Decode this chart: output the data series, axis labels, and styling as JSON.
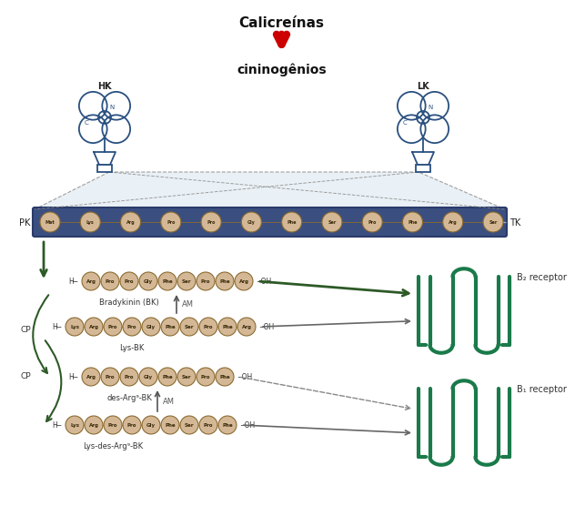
{
  "title": "Calicreínas",
  "subtitle": "cininogênios",
  "bg_color": "#ffffff",
  "receptor_color": "#1a7a4a",
  "red_arrow_color": "#cc0000",
  "dark_arrow_color": "#2d5a27",
  "node_fill": "#d4b896",
  "node_edge": "#8b6b30",
  "node_text_color": "#3a2a0a",
  "bar_fill": "#3a4f80",
  "bar_edge": "#2a3a6a",
  "protein_bar_text": [
    "Met",
    "Lys",
    "Arg",
    "Pro",
    "Pro",
    "Gly",
    "Phe",
    "Ser",
    "Pro",
    "Phe",
    "Arg",
    "Ser"
  ],
  "bk_nodes": [
    "Arg",
    "Pro",
    "Pro",
    "Gly",
    "Phe",
    "Ser",
    "Pro",
    "Phe",
    "Arg"
  ],
  "lysbk_nodes": [
    "Lys",
    "Arg",
    "Pro",
    "Pro",
    "Gly",
    "Phe",
    "Ser",
    "Pro",
    "Phe",
    "Arg"
  ],
  "desbk_nodes": [
    "Arg",
    "Pro",
    "Pro",
    "Gly",
    "Phe",
    "Ser",
    "Pro",
    "Phe"
  ],
  "lysdeskbk_nodes": [
    "Lys",
    "Arg",
    "Pro",
    "Pro",
    "Gly",
    "Phe",
    "Ser",
    "Pro",
    "Phe"
  ],
  "hk_label": "HK",
  "lk_label": "LK",
  "pk_label": "PK",
  "tk_label": "TK",
  "bk_label": "Bradykinin (BK)",
  "lysbk_label": "Lys-BK",
  "desbk_label": "des-Arg⁹-BK",
  "lysdeskbk_label": "Lys-des-Arg⁹-BK",
  "b2_label": "B₂ receptor",
  "b1_label": "B₁ receptor",
  "cp_label": "CP",
  "am_label": "AM",
  "prot_col": "#2a5080"
}
